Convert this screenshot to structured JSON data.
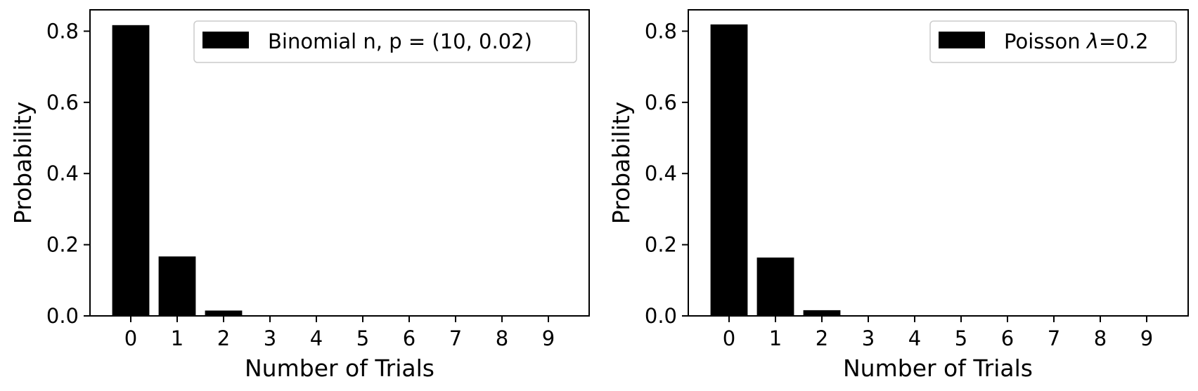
{
  "chart_data": [
    {
      "type": "bar",
      "title": "",
      "xlabel": "Number of Trials",
      "ylabel": "Probability",
      "categories": [
        "0",
        "1",
        "2",
        "3",
        "4",
        "5",
        "6",
        "7",
        "8",
        "9"
      ],
      "yticks": [
        "0.0",
        "0.2",
        "0.4",
        "0.6",
        "0.8"
      ],
      "ylim": [
        0,
        0.86
      ],
      "grid": false,
      "legend_position": "top-right",
      "series": [
        {
          "name": "Binomial n, p = (10, 0.02)",
          "color": "#000000",
          "values": [
            0.817,
            0.167,
            0.015,
            0.001,
            0.0,
            0.0,
            0.0,
            0.0,
            0.0,
            0.0
          ]
        }
      ]
    },
    {
      "type": "bar",
      "title": "",
      "xlabel": "Number of Trials",
      "ylabel": "Probability",
      "categories": [
        "0",
        "1",
        "2",
        "3",
        "4",
        "5",
        "6",
        "7",
        "8",
        "9"
      ],
      "yticks": [
        "0.0",
        "0.2",
        "0.4",
        "0.6",
        "0.8"
      ],
      "ylim": [
        0,
        0.86
      ],
      "grid": false,
      "legend_position": "top-right",
      "series": [
        {
          "name_prefix": "Poisson ",
          "name_symbol": "λ",
          "name_suffix": "=0.2",
          "color": "#000000",
          "values": [
            0.819,
            0.164,
            0.016,
            0.001,
            0.0,
            0.0,
            0.0,
            0.0,
            0.0,
            0.0
          ]
        }
      ]
    }
  ]
}
